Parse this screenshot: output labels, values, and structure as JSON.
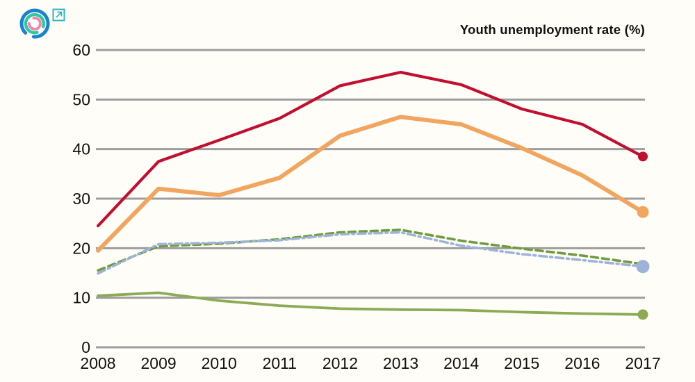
{
  "header": {
    "logo": {
      "outer_arc_color": "#1b82cb",
      "middle_arc_color": "#2dc9a2",
      "inner_arc_color": "#f585ae"
    },
    "external_link_color": "#2fb5c4"
  },
  "chart_data": {
    "type": "line",
    "title": "Youth unemployment rate (%)",
    "x": [
      2008,
      2009,
      2010,
      2011,
      2012,
      2013,
      2014,
      2015,
      2016,
      2017
    ],
    "series": [
      {
        "name": "green-solid",
        "color": "#8cab55",
        "style": "solid",
        "dash": null,
        "width": 3.8,
        "end_marker": true,
        "marker_radius": 7.5,
        "values": [
          10.4,
          11.0,
          9.4,
          8.4,
          7.8,
          7.6,
          7.5,
          7.1,
          6.8,
          6.6
        ]
      },
      {
        "name": "green-dashed",
        "color": "#6f9c41",
        "style": "dashed",
        "dash": "10 6",
        "width": 3.6,
        "end_marker": false,
        "marker_radius": 0,
        "values": [
          15.5,
          20.4,
          20.9,
          21.8,
          23.2,
          23.7,
          21.5,
          19.9,
          18.5,
          16.8
        ]
      },
      {
        "name": "blue-dash-dot",
        "color": "#9db3d8",
        "style": "dash-dot",
        "dash": "11 5 3 5",
        "width": 3.6,
        "end_marker": true,
        "marker_radius": 9.5,
        "values": [
          14.9,
          20.8,
          21.1,
          21.6,
          22.8,
          23.2,
          20.5,
          18.8,
          17.6,
          16.3
        ]
      },
      {
        "name": "orange-solid",
        "color": "#f1a55f",
        "style": "solid",
        "dash": null,
        "width": 6,
        "end_marker": true,
        "marker_radius": 8.5,
        "values": [
          19.5,
          32.0,
          30.7,
          34.2,
          42.7,
          46.5,
          45.0,
          40.2,
          34.7,
          27.3
        ]
      },
      {
        "name": "red-solid",
        "color": "#c20e2f",
        "style": "solid",
        "dash": null,
        "width": 4.2,
        "end_marker": true,
        "marker_radius": 7,
        "values": [
          24.5,
          37.5,
          41.8,
          46.2,
          52.8,
          55.5,
          53.0,
          48.1,
          45.0,
          38.5
        ]
      }
    ],
    "ylim": [
      0,
      60
    ],
    "yticks": [
      0,
      10,
      20,
      30,
      40,
      50,
      60
    ],
    "grid": "horizontal",
    "legend": "none",
    "gridline_color": "#9d9d9d",
    "tick_label_color": "#111111"
  }
}
